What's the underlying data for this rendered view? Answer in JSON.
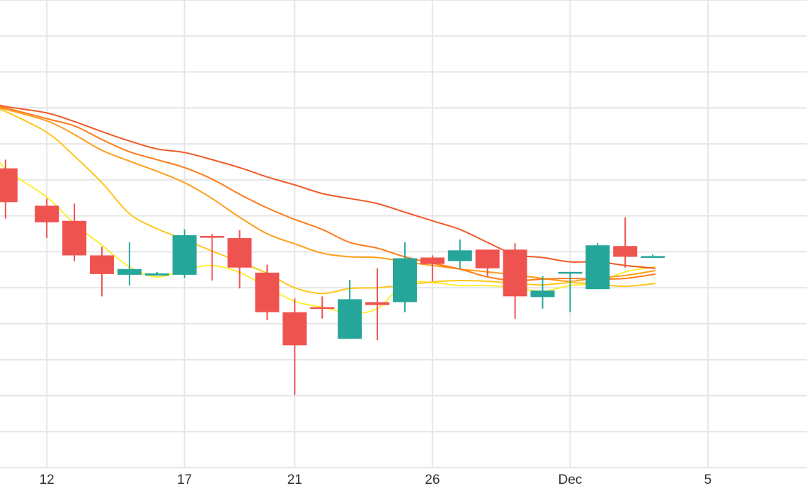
{
  "chart_data": {
    "type": "candlestick",
    "title": "",
    "xlabel": "",
    "ylabel": "",
    "x_tick_labels": [
      {
        "day": 0,
        "label": "12"
      },
      {
        "day": 5,
        "label": "17"
      },
      {
        "day": 9,
        "label": "21"
      },
      {
        "day": 14,
        "label": "26"
      },
      {
        "day": 19,
        "label": "Dec"
      },
      {
        "day": 24,
        "label": "5"
      }
    ],
    "xlim": [
      -1.7,
      27.6
    ],
    "ylim": [
      0,
      13
    ],
    "horizontal_gridlines": [
      1,
      2,
      3,
      4,
      5,
      6,
      7,
      8,
      9,
      10,
      11,
      12,
      13
    ],
    "grid": true,
    "colors": {
      "up": "#26a69a",
      "down": "#ef5350",
      "grid": "#e6e6e6"
    },
    "candles": [
      {
        "day": -1.5,
        "open": 8.32,
        "high": 8.56,
        "low": 6.92,
        "close": 7.38
      },
      {
        "day": 0,
        "open": 7.28,
        "high": 7.48,
        "low": 6.38,
        "close": 6.82
      },
      {
        "day": 1,
        "open": 6.86,
        "high": 7.34,
        "low": 5.74,
        "close": 5.9
      },
      {
        "day": 2,
        "open": 5.9,
        "high": 6.14,
        "low": 4.76,
        "close": 5.38
      },
      {
        "day": 3,
        "open": 5.36,
        "high": 6.26,
        "low": 5.06,
        "close": 5.52
      },
      {
        "day": 4,
        "open": 5.34,
        "high": 5.44,
        "low": 5.34,
        "close": 5.4
      },
      {
        "day": 5,
        "open": 5.36,
        "high": 6.62,
        "low": 5.28,
        "close": 6.46
      },
      {
        "day": 6,
        "open": 6.44,
        "high": 6.5,
        "low": 5.2,
        "close": 6.4
      },
      {
        "day": 7,
        "open": 6.38,
        "high": 6.6,
        "low": 4.98,
        "close": 5.56
      },
      {
        "day": 8,
        "open": 5.42,
        "high": 5.64,
        "low": 4.1,
        "close": 4.32
      },
      {
        "day": 9,
        "open": 4.32,
        "high": 4.7,
        "low": 2.02,
        "close": 3.4
      },
      {
        "day": 10,
        "open": 4.46,
        "high": 4.76,
        "low": 4.14,
        "close": 4.44
      },
      {
        "day": 11,
        "open": 3.58,
        "high": 5.22,
        "low": 3.58,
        "close": 4.68
      },
      {
        "day": 12,
        "open": 4.6,
        "high": 5.54,
        "low": 3.54,
        "close": 4.52
      },
      {
        "day": 13,
        "open": 4.6,
        "high": 6.26,
        "low": 4.32,
        "close": 5.82
      },
      {
        "day": 14,
        "open": 5.84,
        "high": 5.9,
        "low": 5.18,
        "close": 5.66
      },
      {
        "day": 15,
        "open": 5.74,
        "high": 6.34,
        "low": 5.52,
        "close": 6.04
      },
      {
        "day": 16,
        "open": 6.06,
        "high": 6.06,
        "low": 5.32,
        "close": 5.54
      },
      {
        "day": 17,
        "open": 6.06,
        "high": 6.24,
        "low": 4.14,
        "close": 4.76
      },
      {
        "day": 18,
        "open": 4.74,
        "high": 5.32,
        "low": 4.42,
        "close": 4.92
      },
      {
        "day": 19,
        "open": 5.44,
        "high": 5.44,
        "low": 4.32,
        "close": 5.44
      },
      {
        "day": 20,
        "open": 4.96,
        "high": 6.24,
        "low": 4.96,
        "close": 6.18
      },
      {
        "day": 21,
        "open": 6.16,
        "high": 6.96,
        "low": 5.56,
        "close": 5.86
      },
      {
        "day": 22,
        "open": 5.86,
        "high": 5.92,
        "low": 5.86,
        "close": 5.88
      }
    ],
    "moving_averages": [
      {
        "color": "#ffee33",
        "x": [
          -2,
          -1.5,
          0,
          1,
          2,
          3,
          4,
          5,
          6,
          7,
          8,
          9,
          10,
          11,
          12,
          13,
          14,
          15,
          16,
          17,
          18,
          19,
          20,
          21,
          22.1
        ],
        "y": [
          8.92,
          8.3,
          7.52,
          6.78,
          6.18,
          5.58,
          5.3,
          5.5,
          5.62,
          5.42,
          5.02,
          4.62,
          4.46,
          4.3,
          4.42,
          5.12,
          5.14,
          5.06,
          5.06,
          5.0,
          4.9,
          5.06,
          5.14,
          5.44,
          5.58
        ]
      },
      {
        "color": "#ffc61a",
        "x": [
          -2,
          -1.5,
          0,
          1,
          2,
          3,
          4,
          5,
          6,
          7,
          8,
          9,
          10,
          11,
          12,
          13,
          14,
          15,
          16,
          17,
          18,
          19,
          20,
          21,
          22.1
        ],
        "y": [
          10.02,
          9.9,
          9.32,
          8.66,
          7.92,
          7.06,
          6.64,
          6.34,
          6.02,
          5.72,
          5.4,
          5.0,
          4.84,
          4.98,
          5.0,
          5.08,
          5.16,
          5.2,
          5.18,
          5.12,
          5.08,
          5.14,
          5.1,
          5.04,
          5.12
        ]
      },
      {
        "color": "#ff9e1a",
        "x": [
          -2,
          -1.5,
          0,
          1,
          2,
          3,
          4,
          5,
          6,
          7,
          8,
          9,
          10,
          11,
          12,
          13,
          14,
          15,
          16,
          17,
          18,
          19,
          20,
          21,
          22.1
        ],
        "y": [
          10.04,
          9.96,
          9.64,
          9.26,
          8.82,
          8.52,
          8.24,
          7.92,
          7.48,
          6.96,
          6.5,
          6.22,
          5.96,
          5.86,
          5.84,
          5.72,
          5.62,
          5.52,
          5.44,
          5.36,
          5.26,
          5.18,
          5.28,
          5.34,
          5.48
        ]
      },
      {
        "color": "#ff7a1a",
        "x": [
          -2,
          -1.5,
          0,
          1,
          2,
          3,
          4,
          5,
          6,
          7,
          8,
          9,
          10,
          11,
          12,
          13,
          14,
          15,
          16,
          17,
          18,
          19,
          20,
          21,
          22.1
        ],
        "y": [
          10.06,
          10.0,
          9.7,
          9.5,
          9.12,
          8.78,
          8.56,
          8.34,
          8.02,
          7.6,
          7.22,
          6.9,
          6.62,
          6.26,
          6.1,
          5.86,
          5.68,
          5.52,
          5.3,
          5.2,
          5.24,
          5.26,
          5.24,
          5.26,
          5.38
        ]
      },
      {
        "color": "#f05a28",
        "x": [
          -2,
          -1.5,
          0,
          1,
          2,
          3,
          4,
          5,
          6,
          7,
          8,
          9,
          10,
          11,
          12,
          13,
          14,
          15,
          16,
          17,
          18,
          19,
          20,
          21,
          22.1
        ],
        "y": [
          10.14,
          10.04,
          9.86,
          9.62,
          9.34,
          9.08,
          8.86,
          8.76,
          8.56,
          8.34,
          8.08,
          7.86,
          7.62,
          7.48,
          7.34,
          7.1,
          6.86,
          6.62,
          6.26,
          5.92,
          5.84,
          5.72,
          5.72,
          5.62,
          5.54
        ]
      }
    ]
  }
}
